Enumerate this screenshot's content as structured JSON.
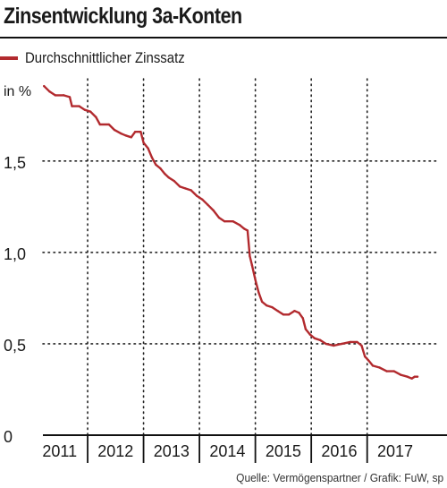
{
  "header": {
    "title": "Zinsentwicklung 3a-Konten"
  },
  "legend": {
    "label": "Durchschnittlicher Zinssatz",
    "color": "#b22a2e"
  },
  "source": "Quelle: Vermögenspartner / Grafik: FuW, sp",
  "chart_data": {
    "type": "line",
    "ylabel": "in %",
    "ylim": [
      0,
      1.95
    ],
    "xlim": [
      2010.7,
      2017.8
    ],
    "y_ticks": [
      {
        "value": 0,
        "label": "0"
      },
      {
        "value": 0.5,
        "label": "0,5"
      },
      {
        "value": 1.0,
        "label": "1,0"
      },
      {
        "value": 1.5,
        "label": "1,5"
      }
    ],
    "x_categories": [
      "2011",
      "2012",
      "2013",
      "2014",
      "2015",
      "2016",
      "2017"
    ],
    "grid": "dotted",
    "legend_position": "top-left",
    "series": [
      {
        "name": "Durchschnittlicher Zinssatz",
        "color": "#b22a2e",
        "points": [
          [
            2010.72,
            1.91
          ],
          [
            2010.82,
            1.88
          ],
          [
            2010.92,
            1.86
          ],
          [
            2011.07,
            1.86
          ],
          [
            2011.18,
            1.85
          ],
          [
            2011.22,
            1.8
          ],
          [
            2011.35,
            1.8
          ],
          [
            2011.45,
            1.78
          ],
          [
            2011.55,
            1.77
          ],
          [
            2011.65,
            1.74
          ],
          [
            2011.72,
            1.7
          ],
          [
            2011.88,
            1.7
          ],
          [
            2011.98,
            1.67
          ],
          [
            2012.1,
            1.65
          ],
          [
            2012.18,
            1.64
          ],
          [
            2012.28,
            1.63
          ],
          [
            2012.35,
            1.66
          ],
          [
            2012.45,
            1.66
          ],
          [
            2012.5,
            1.6
          ],
          [
            2012.58,
            1.57
          ],
          [
            2012.65,
            1.52
          ],
          [
            2012.72,
            1.48
          ],
          [
            2012.8,
            1.46
          ],
          [
            2012.88,
            1.43
          ],
          [
            2012.95,
            1.41
          ],
          [
            2013.05,
            1.39
          ],
          [
            2013.15,
            1.36
          ],
          [
            2013.25,
            1.35
          ],
          [
            2013.35,
            1.34
          ],
          [
            2013.45,
            1.31
          ],
          [
            2013.55,
            1.29
          ],
          [
            2013.65,
            1.26
          ],
          [
            2013.75,
            1.23
          ],
          [
            2013.85,
            1.19
          ],
          [
            2013.95,
            1.17
          ],
          [
            2014.1,
            1.17
          ],
          [
            2014.22,
            1.15
          ],
          [
            2014.3,
            1.13
          ],
          [
            2014.36,
            1.12
          ],
          [
            2014.4,
            0.98
          ],
          [
            2014.44,
            0.93
          ],
          [
            2014.5,
            0.85
          ],
          [
            2014.56,
            0.78
          ],
          [
            2014.62,
            0.73
          ],
          [
            2014.7,
            0.71
          ],
          [
            2014.8,
            0.7
          ],
          [
            2014.9,
            0.68
          ],
          [
            2015.0,
            0.66
          ],
          [
            2015.1,
            0.66
          ],
          [
            2015.2,
            0.68
          ],
          [
            2015.28,
            0.67
          ],
          [
            2015.35,
            0.64
          ],
          [
            2015.4,
            0.58
          ],
          [
            2015.48,
            0.55
          ],
          [
            2015.56,
            0.53
          ],
          [
            2015.66,
            0.52
          ],
          [
            2015.76,
            0.5
          ],
          [
            2015.9,
            0.49
          ],
          [
            2016.05,
            0.5
          ],
          [
            2016.2,
            0.51
          ],
          [
            2016.32,
            0.51
          ],
          [
            2016.4,
            0.49
          ],
          [
            2016.46,
            0.43
          ],
          [
            2016.52,
            0.41
          ],
          [
            2016.6,
            0.38
          ],
          [
            2016.72,
            0.37
          ],
          [
            2016.85,
            0.35
          ],
          [
            2016.98,
            0.35
          ],
          [
            2017.1,
            0.33
          ],
          [
            2017.22,
            0.32
          ],
          [
            2017.3,
            0.31
          ],
          [
            2017.35,
            0.32
          ],
          [
            2017.4,
            0.32
          ]
        ]
      }
    ]
  }
}
